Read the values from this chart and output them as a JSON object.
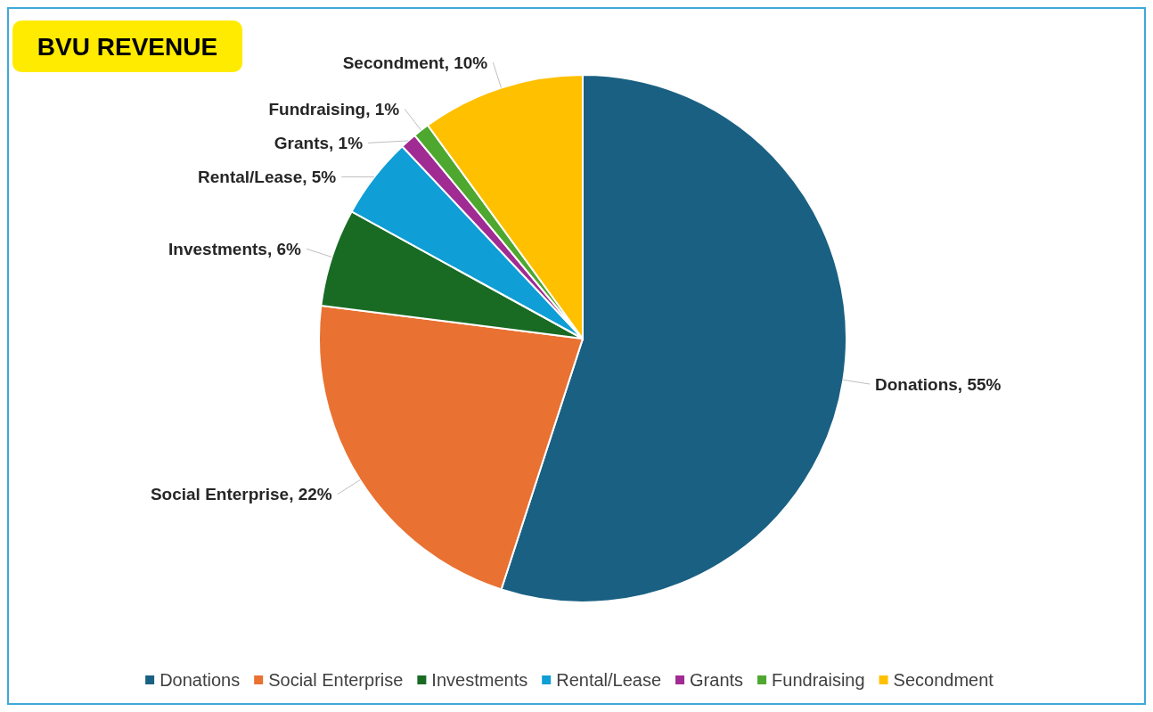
{
  "chart_data": {
    "type": "pie",
    "title": "BVU REVENUE",
    "categories": [
      "Donations",
      "Social Enterprise",
      "Investments",
      "Rental/Lease",
      "Grants",
      "Fundraising",
      "Secondment"
    ],
    "values": [
      55,
      22,
      6,
      5,
      1,
      1,
      10
    ],
    "colors": [
      "#1a6082",
      "#e97132",
      "#196b24",
      "#0f9ed5",
      "#a02b93",
      "#4ea72e",
      "#ffc000"
    ],
    "value_labels": [
      "Donations, 55%",
      "Social Enterprise, 22%",
      "Investments, 6%",
      "Rental/Lease, 5%",
      "Grants, 1%",
      "Fundraising, 1%",
      "Secondment, 10%"
    ],
    "legend": "bottom"
  }
}
